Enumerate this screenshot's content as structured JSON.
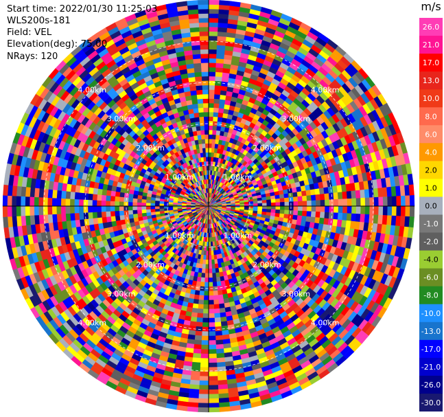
{
  "info": {
    "start_time": "Start time: 2022/01/30 11:25:03",
    "instrument": "WLS200s-181",
    "field": "Field: VEL",
    "elevation": "Elevation(deg): 75.00",
    "nrays": "NRays: 120"
  },
  "chart_data": {
    "type": "heatmap",
    "projection": "polar-ppi",
    "nrays": 120,
    "range_rings_km": [
      "1.00km",
      "2.00km",
      "3.00km",
      "4.00km"
    ],
    "colorbar": {
      "unit": "m/s",
      "ticks": [
        "26.0",
        "21.0",
        "17.0",
        "13.0",
        "10.0",
        "8.0",
        "6.0",
        "4.0",
        "2.0",
        "1.0",
        "0.0",
        "-1.0",
        "-2.0",
        "-4.0",
        "-6.0",
        "-8.0",
        "-10.0",
        "-13.0",
        "-17.0",
        "-21.0",
        "-26.0",
        "-30.0"
      ],
      "colors": [
        "#ff3db5",
        "#ff1493",
        "#ff0000",
        "#e8251c",
        "#f03a18",
        "#ff6a4d",
        "#ff8c69",
        "#ff9900",
        "#ffd700",
        "#ffff00",
        "#a8b0bd",
        "#787878",
        "#5f5f5f",
        "#9acd32",
        "#6b8e23",
        "#228b22",
        "#1e90ff",
        "#1874cd",
        "#0000ff",
        "#0000cd",
        "#00008b",
        "#191970"
      ]
    }
  },
  "colors": {
    "ring_line": "#ffffff",
    "crosshair": "#000000",
    "label_text": "#ffffff"
  }
}
